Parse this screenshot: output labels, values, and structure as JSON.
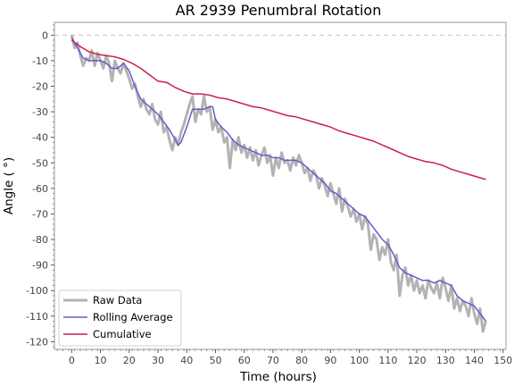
{
  "chart_data": {
    "type": "line",
    "title": "AR 2939 Penumbral Rotation",
    "xlabel": "Time (hours)",
    "ylabel": "Angle ( °)",
    "xlim": [
      -6,
      151
    ],
    "ylim": [
      -123,
      5
    ],
    "xticks": [
      0,
      10,
      20,
      30,
      40,
      50,
      60,
      70,
      80,
      90,
      100,
      110,
      120,
      130,
      140,
      150
    ],
    "yticks": [
      0,
      -10,
      -20,
      -30,
      -40,
      -50,
      -60,
      -70,
      -80,
      -90,
      -100,
      -110,
      -120
    ],
    "reference_line": 0,
    "legend_position": "lower-left",
    "colors": {
      "raw": "#b3b3b3",
      "rolling": "#6a5acd",
      "cumulative": "#cc1f4a",
      "reference": "#c8c8c8"
    },
    "series": [
      {
        "name": "Raw Data",
        "x": [
          0,
          1,
          2,
          3,
          4,
          5,
          6,
          7,
          8,
          9,
          10,
          11,
          12,
          13,
          14,
          15,
          16,
          17,
          18,
          19,
          20,
          21,
          22,
          23,
          24,
          25,
          26,
          27,
          28,
          29,
          30,
          31,
          32,
          33,
          34,
          35,
          36,
          37,
          38,
          39,
          40,
          41,
          42,
          43,
          44,
          45,
          46,
          47,
          48,
          49,
          50,
          51,
          52,
          53,
          54,
          55,
          56,
          57,
          58,
          59,
          60,
          61,
          62,
          63,
          64,
          65,
          66,
          67,
          68,
          69,
          70,
          71,
          72,
          73,
          74,
          75,
          76,
          77,
          78,
          79,
          80,
          81,
          82,
          83,
          84,
          85,
          86,
          87,
          88,
          89,
          90,
          91,
          92,
          93,
          94,
          95,
          96,
          97,
          98,
          99,
          100,
          101,
          102,
          103,
          104,
          105,
          106,
          107,
          108,
          109,
          110,
          111,
          112,
          113,
          114,
          115,
          116,
          117,
          118,
          119,
          120,
          121,
          122,
          123,
          124,
          125,
          126,
          127,
          128,
          129,
          130,
          131,
          132,
          133,
          134,
          135,
          136,
          137,
          138,
          139,
          140,
          141,
          142,
          143,
          144
        ],
        "y": [
          0,
          -5,
          -3,
          -8,
          -12,
          -9,
          -10,
          -6,
          -12,
          -7,
          -10,
          -13,
          -8,
          -11,
          -18,
          -10,
          -13,
          -15,
          -11,
          -14,
          -17,
          -21,
          -19,
          -24,
          -28,
          -25,
          -29,
          -31,
          -27,
          -33,
          -35,
          -30,
          -38,
          -36,
          -41,
          -45,
          -40,
          -43,
          -38,
          -35,
          -31,
          -27,
          -24,
          -34,
          -29,
          -31,
          -24,
          -30,
          -28,
          -37,
          -33,
          -38,
          -36,
          -42,
          -40,
          -52,
          -41,
          -45,
          -40,
          -46,
          -43,
          -48,
          -44,
          -49,
          -45,
          -51,
          -47,
          -44,
          -50,
          -47,
          -55,
          -48,
          -52,
          -46,
          -50,
          -49,
          -53,
          -48,
          -51,
          -47,
          -50,
          -54,
          -52,
          -57,
          -53,
          -55,
          -60,
          -56,
          -59,
          -63,
          -58,
          -62,
          -66,
          -60,
          -69,
          -64,
          -67,
          -71,
          -68,
          -73,
          -70,
          -76,
          -71,
          -74,
          -84,
          -78,
          -80,
          -88,
          -83,
          -86,
          -80,
          -89,
          -92,
          -86,
          -102,
          -94,
          -91,
          -98,
          -94,
          -100,
          -96,
          -101,
          -98,
          -103,
          -96,
          -99,
          -101,
          -97,
          -103,
          -95,
          -99,
          -104,
          -98,
          -107,
          -103,
          -108,
          -104,
          -106,
          -110,
          -103,
          -109,
          -113,
          -107,
          -116,
          -112
        ]
      },
      {
        "name": "Rolling Average",
        "x": [
          0,
          2,
          4,
          6,
          8,
          10,
          12,
          14,
          16,
          18,
          20,
          22,
          24,
          26,
          28,
          30,
          32,
          34,
          36,
          37,
          38,
          40,
          42,
          44,
          46,
          48,
          49,
          50,
          52,
          54,
          56,
          58,
          60,
          62,
          64,
          66,
          68,
          70,
          72,
          74,
          76,
          78,
          80,
          82,
          84,
          86,
          88,
          90,
          92,
          94,
          96,
          98,
          100,
          102,
          104,
          106,
          108,
          110,
          112,
          114,
          116,
          118,
          120,
          122,
          124,
          126,
          128,
          130,
          132,
          134,
          136,
          138,
          140,
          142,
          144
        ],
        "y": [
          -1,
          -5,
          -9,
          -10,
          -10,
          -10,
          -11,
          -13,
          -13,
          -11,
          -14,
          -20,
          -25,
          -27,
          -29,
          -31,
          -34,
          -37,
          -41,
          -43,
          -42,
          -36,
          -29,
          -29,
          -29,
          -28,
          -28,
          -33,
          -36,
          -38,
          -41,
          -43,
          -44,
          -45,
          -46,
          -47,
          -47,
          -48,
          -48,
          -49,
          -49,
          -49,
          -50,
          -52,
          -54,
          -56,
          -58,
          -61,
          -62,
          -64,
          -66,
          -68,
          -70,
          -71,
          -74,
          -77,
          -80,
          -82,
          -86,
          -91,
          -93,
          -94,
          -95,
          -96,
          -96,
          -97,
          -96,
          -97,
          -98,
          -102,
          -104,
          -105,
          -106,
          -109,
          -112
        ]
      },
      {
        "name": "Cumulative",
        "x": [
          0,
          3,
          6,
          9,
          12,
          15,
          18,
          21,
          24,
          27,
          30,
          33,
          36,
          39,
          42,
          45,
          48,
          51,
          54,
          57,
          60,
          63,
          66,
          69,
          72,
          75,
          78,
          81,
          84,
          87,
          90,
          93,
          96,
          99,
          102,
          105,
          108,
          111,
          114,
          117,
          120,
          123,
          126,
          129,
          132,
          135,
          138,
          141,
          144
        ],
        "y": [
          -2,
          -4.5,
          -6.5,
          -7.5,
          -8,
          -8.5,
          -9.5,
          -11,
          -13,
          -15.5,
          -18,
          -18.5,
          -20.5,
          -22,
          -23,
          -23,
          -23.5,
          -24.5,
          -25,
          -26,
          -27,
          -28,
          -28.5,
          -29.5,
          -30.5,
          -31.5,
          -32,
          -33,
          -34,
          -35,
          -36,
          -37.5,
          -38.5,
          -39.5,
          -40.5,
          -41.5,
          -43,
          -44.5,
          -46,
          -47.5,
          -48.5,
          -49.5,
          -50,
          -51,
          -52.5,
          -53.5,
          -54.5,
          -55.5,
          -56.5
        ]
      }
    ]
  }
}
